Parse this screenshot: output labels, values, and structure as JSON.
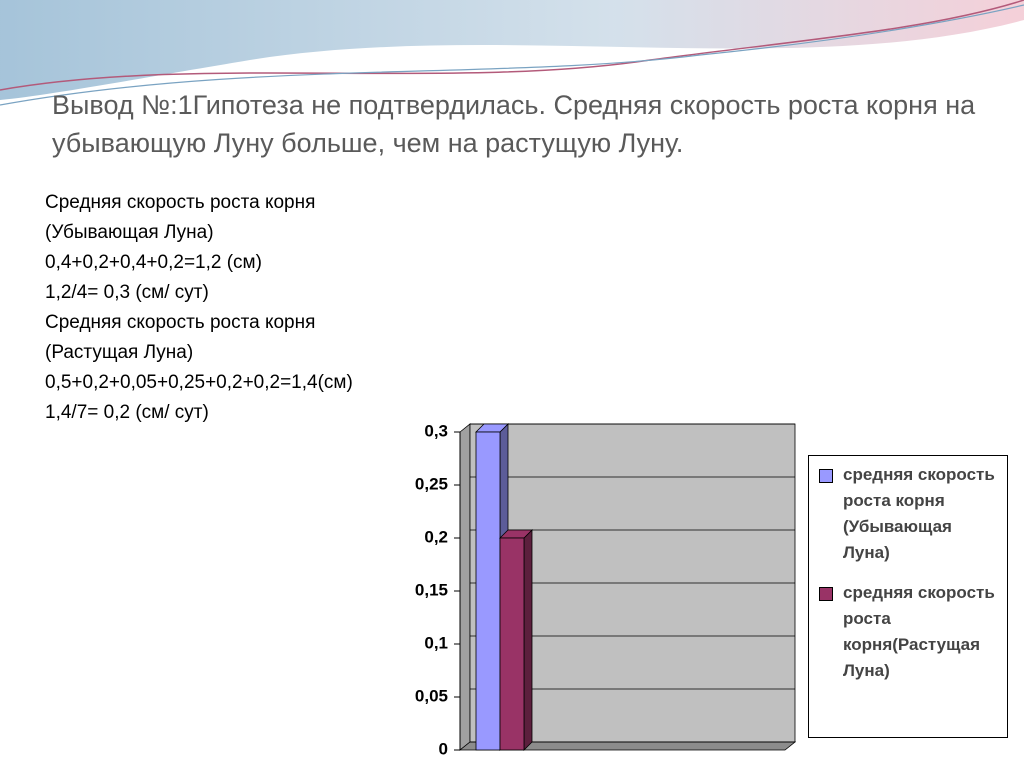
{
  "slide": {
    "title": "Вывод №:1Гипотеза не подтвердилась. Средняя скорость роста корня на убывающую Луну больше, чем на растущую Луну.",
    "lines": [
      "Средняя скорость роста корня",
      "(Убывающая Луна)",
      "0,4+0,2+0,4+0,2=1,2 (см)",
      "1,2/4= 0,3 (см/ сут)",
      "Средняя скорость роста корня",
      "(Растущая Луна)",
      "0,5+0,2+0,05+0,25+0,2+0,2=1,4(см)",
      "1,4/7= 0,2 (см/ сут)"
    ]
  },
  "chart_data": {
    "type": "bar",
    "categories": [
      null
    ],
    "series": [
      {
        "name": "средняя скорость роста корня (Убывающая Луна)",
        "color": "#9999ff",
        "values": [
          0.3
        ]
      },
      {
        "name": "средняя скорость роста корня(Растущая Луна)",
        "color": "#993366",
        "values": [
          0.2
        ]
      }
    ],
    "ylim": [
      0,
      0.3
    ],
    "yticks": [
      0,
      {
        "value": 0.05,
        "label": "0,05"
      },
      {
        "value": 0.1,
        "label": "0,1"
      },
      {
        "value": 0.15,
        "label": "0,15"
      },
      {
        "value": 0.2,
        "label": "0,2"
      },
      {
        "value": 0.25,
        "label": "0,25"
      },
      {
        "value": 0.3,
        "label": "0,3"
      }
    ],
    "grid": true,
    "legend": "right"
  }
}
